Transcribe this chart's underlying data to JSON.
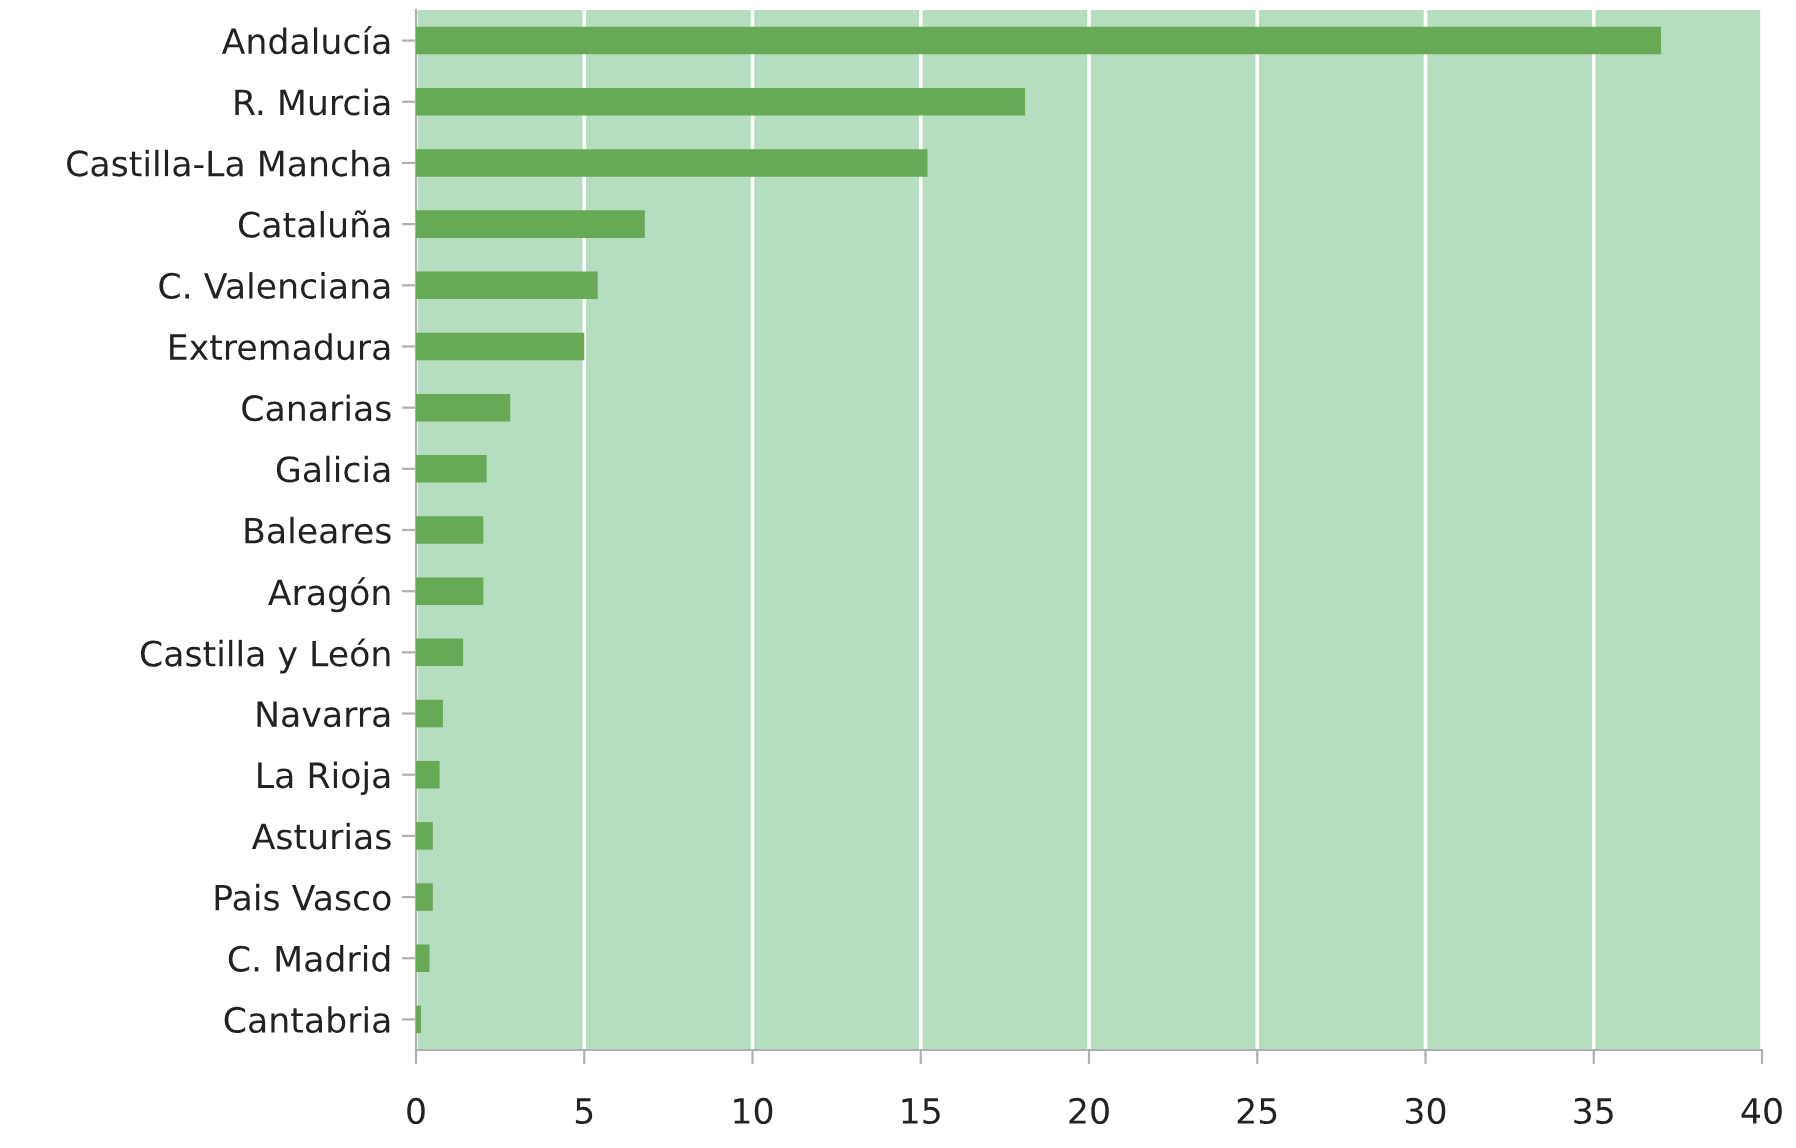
{
  "chart_data": {
    "type": "bar",
    "orientation": "horizontal",
    "categories": [
      "Andalucía",
      "R. Murcia",
      "Castilla-La Mancha",
      "Cataluña",
      "C. Valenciana",
      "Extremadura",
      "Canarias",
      "Galicia",
      "Baleares",
      "Aragón",
      "Castilla y León",
      "Navarra",
      "La Rioja",
      "Asturias",
      "Pais Vasco",
      "C. Madrid",
      "Cantabria"
    ],
    "values": [
      37.0,
      18.1,
      15.2,
      6.8,
      5.4,
      5.0,
      2.8,
      2.1,
      2.0,
      2.0,
      1.4,
      0.8,
      0.7,
      0.5,
      0.5,
      0.4,
      0.15
    ],
    "color": "#68a956",
    "xlim": [
      0,
      40
    ],
    "xticks": [
      0,
      5,
      10,
      15,
      20,
      25,
      30,
      35,
      40
    ],
    "grid": "x"
  }
}
